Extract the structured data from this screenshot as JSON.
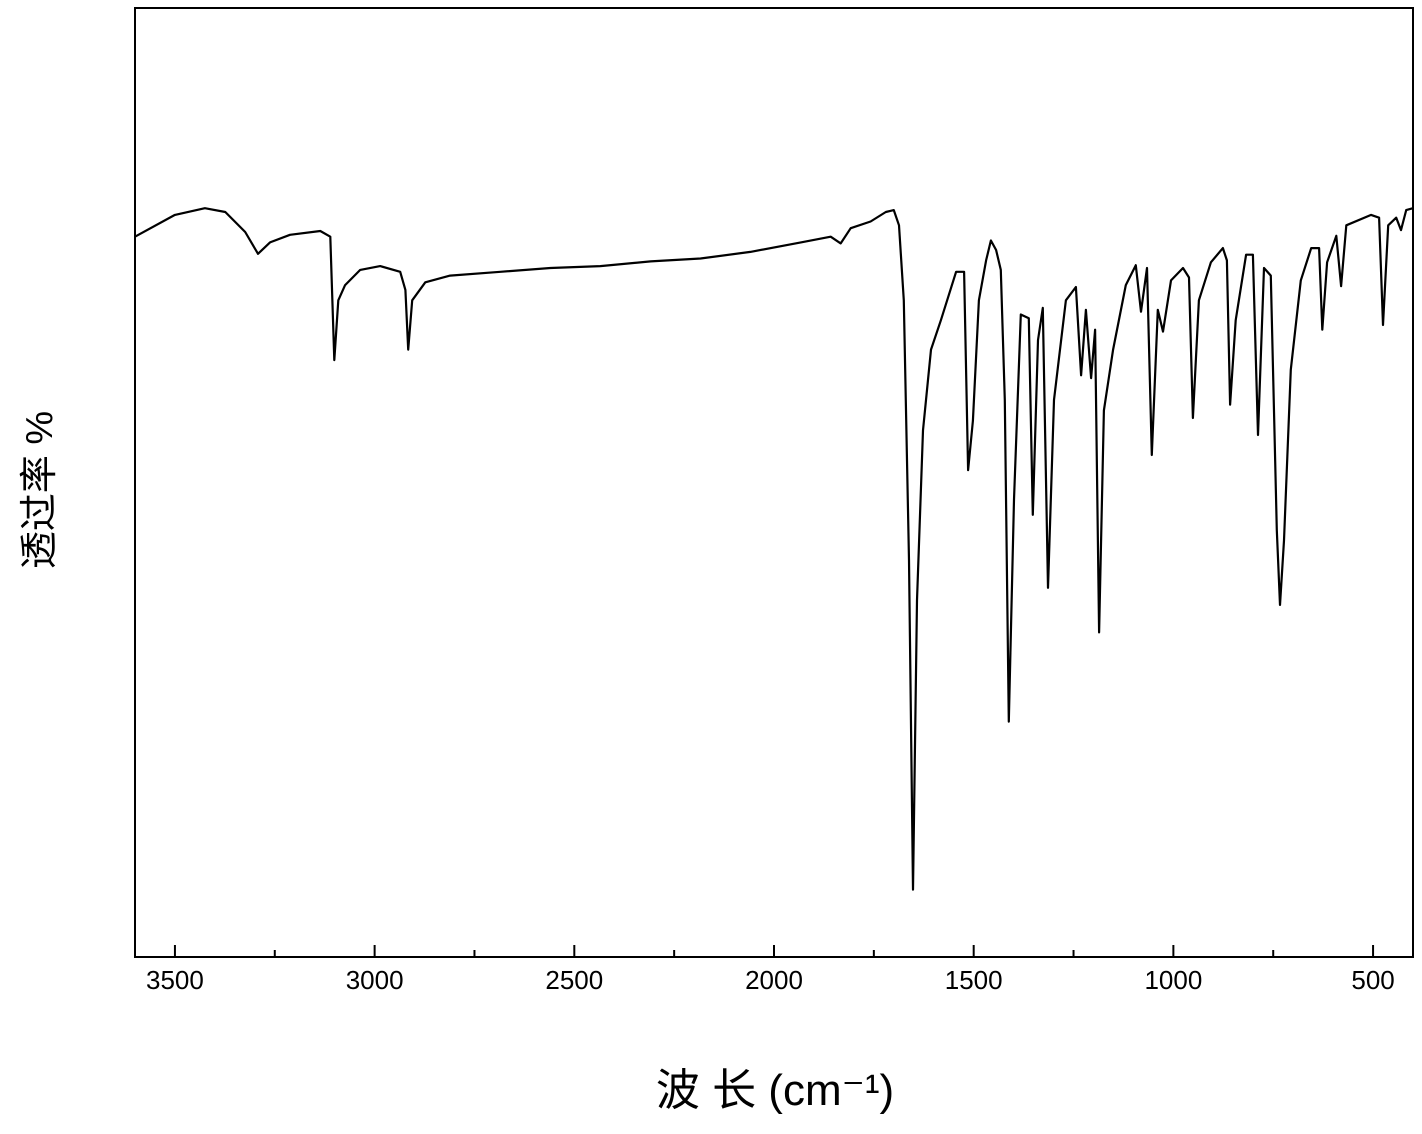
{
  "chart_data": {
    "type": "line",
    "x_label": "波 长 (cm⁻¹)",
    "y_label": "透过率 %",
    "xlim": [
      3600,
      400
    ],
    "ylim": [
      0,
      100
    ],
    "xticks": [
      3500,
      3000,
      2500,
      2000,
      1500,
      1000,
      500
    ],
    "xticks_minor": [
      3250,
      2750,
      2250,
      1750,
      1250,
      750
    ],
    "color": "#000000",
    "x": [
      3600,
      3500,
      3425,
      3374,
      3324,
      3292,
      3262,
      3212,
      3136,
      3111,
      3101,
      3091,
      3074,
      3036,
      2986,
      2936,
      2923,
      2916,
      2906,
      2873,
      2811,
      2685,
      2560,
      2435,
      2309,
      2184,
      2059,
      1933,
      1858,
      1833,
      1808,
      1758,
      1720,
      1700,
      1687,
      1675,
      1662,
      1652,
      1642,
      1627,
      1607,
      1582,
      1544,
      1524,
      1514,
      1502,
      1487,
      1469,
      1457,
      1444,
      1432,
      1422,
      1412,
      1399,
      1382,
      1362,
      1352,
      1339,
      1327,
      1314,
      1299,
      1269,
      1244,
      1231,
      1219,
      1206,
      1196,
      1186,
      1174,
      1151,
      1119,
      1094,
      1081,
      1066,
      1054,
      1039,
      1026,
      1006,
      976,
      961,
      951,
      936,
      906,
      876,
      866,
      858,
      844,
      818,
      801,
      788,
      773,
      756,
      741,
      733,
      723,
      706,
      681,
      655,
      635,
      627,
      615,
      592,
      580,
      567,
      505,
      485,
      475,
      462,
      442,
      430,
      417,
      400
    ],
    "values": [
      75.9,
      78.2,
      78.9,
      78.5,
      76.4,
      74.1,
      75.3,
      76.1,
      76.5,
      75.9,
      62.9,
      69.2,
      70.8,
      72.4,
      72.8,
      72.2,
      70.3,
      64.0,
      69.2,
      71.1,
      71.8,
      72.2,
      72.6,
      72.8,
      73.3,
      73.6,
      74.3,
      75.3,
      75.9,
      75.2,
      76.8,
      77.5,
      78.5,
      78.7,
      77.1,
      69.2,
      41.8,
      7.1,
      37.6,
      55.5,
      64.0,
      67.1,
      72.2,
      72.2,
      51.3,
      56.5,
      69.2,
      73.4,
      75.5,
      74.5,
      72.4,
      58.7,
      24.8,
      48.2,
      67.7,
      67.3,
      46.6,
      65.0,
      68.4,
      38.9,
      58.7,
      69.2,
      70.6,
      61.3,
      68.2,
      61.0,
      66.1,
      34.2,
      57.6,
      64.0,
      70.8,
      72.9,
      68.0,
      72.6,
      52.9,
      68.2,
      65.9,
      71.3,
      72.6,
      71.6,
      56.8,
      69.2,
      73.2,
      74.7,
      73.4,
      58.2,
      67.1,
      74.0,
      74.0,
      55.0,
      72.6,
      71.8,
      45.0,
      37.1,
      43.9,
      61.9,
      71.3,
      74.7,
      74.7,
      66.1,
      73.2,
      76.0,
      70.7,
      77.1,
      78.2,
      77.9,
      66.6,
      77.1,
      77.9,
      76.6,
      78.7,
      78.9
    ]
  }
}
